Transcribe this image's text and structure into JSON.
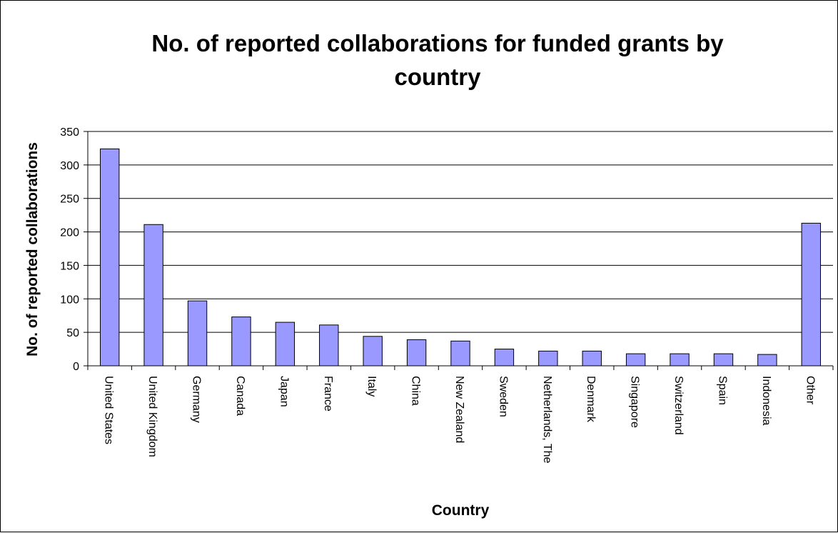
{
  "chart_data": {
    "type": "bar",
    "title_lines": [
      "No. of reported collaborations for funded grants by",
      "country"
    ],
    "xlabel": "Country",
    "ylabel": "No. of reported collaborations",
    "ylim": [
      0,
      350
    ],
    "yticks": [
      0,
      50,
      100,
      150,
      200,
      250,
      300,
      350
    ],
    "grid": true,
    "legend": "none",
    "bar_color": "#9999ff",
    "bar_stroke": "#000000",
    "categories": [
      "United States",
      "United Kingdom",
      "Germany",
      "Canada",
      "Japan",
      "France",
      "Italy",
      "China",
      "New Zealand",
      "Sweden",
      "Netherlands, The",
      "Denmark",
      "Singapore",
      "Switzerland",
      "Spain",
      "Indonesia",
      "Other"
    ],
    "values": [
      324,
      211,
      97,
      73,
      65,
      61,
      44,
      39,
      37,
      25,
      22,
      22,
      18,
      18,
      18,
      17,
      213
    ]
  }
}
